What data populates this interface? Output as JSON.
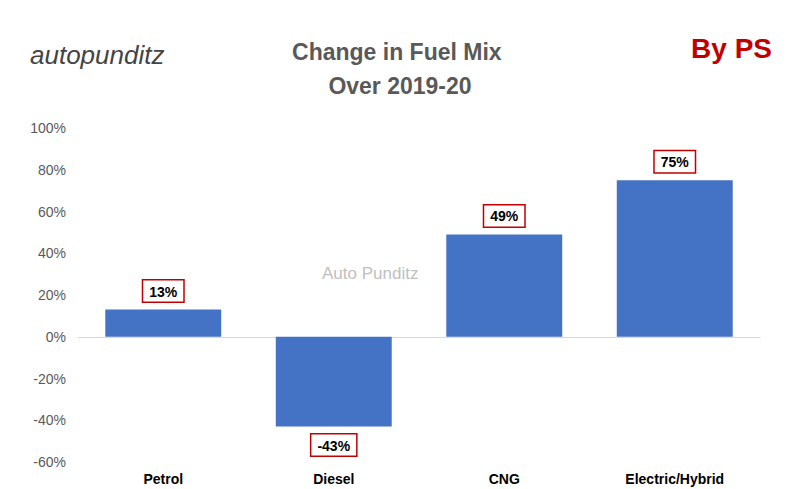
{
  "chart_data": {
    "type": "bar",
    "title": "Change in Fuel Mix Over 2019-20",
    "categories": [
      "Petrol",
      "Diesel",
      "CNG",
      "Electric/Hybrid"
    ],
    "values": [
      13,
      -43,
      49,
      75
    ],
    "value_labels": [
      "13%",
      "-43%",
      "49%",
      "75%"
    ],
    "color": "#4472c4",
    "ylim": [
      -60,
      100
    ],
    "yticks": [
      {
        "value": -60,
        "label": "-60%"
      },
      {
        "value": -40,
        "label": "-40%"
      },
      {
        "value": -20,
        "label": "-20%"
      },
      {
        "value": 0,
        "label": "0%"
      },
      {
        "value": 20,
        "label": "20%"
      },
      {
        "value": 40,
        "label": "40%"
      },
      {
        "value": 60,
        "label": "60%"
      },
      {
        "value": 80,
        "label": "80%"
      },
      {
        "value": 100,
        "label": "100%"
      }
    ],
    "grid": false,
    "data_labels": true,
    "annotations": [
      "autopunditz",
      "By PS",
      "Auto Punditz"
    ]
  }
}
